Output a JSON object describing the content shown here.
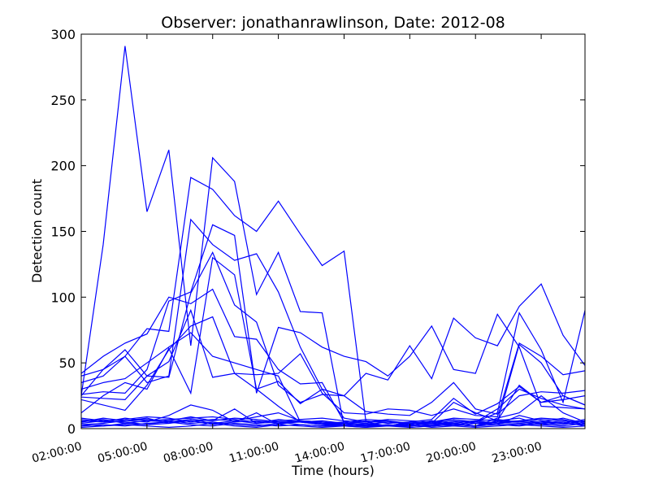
{
  "chart_data": {
    "type": "line",
    "title": "Observer: jonathanrawlinson, Date: 2012-08",
    "xlabel": "Time (hours)",
    "ylabel": "Detection count",
    "ylim": [
      0,
      300
    ],
    "yticks": [
      0,
      50,
      100,
      150,
      200,
      250,
      300
    ],
    "xlim_hours": [
      2,
      25
    ],
    "xtick_labels": [
      "02:00:00",
      "05:00:00",
      "08:00:00",
      "11:00:00",
      "14:00:00",
      "17:00:00",
      "20:00:00",
      "23:00:00"
    ],
    "xtick_hours": [
      2,
      5,
      8,
      11,
      14,
      17,
      20,
      23
    ],
    "x_hours": [
      2,
      3,
      4,
      5,
      6,
      7,
      8,
      9,
      10,
      11,
      12,
      13,
      14,
      15,
      16,
      17,
      18,
      19,
      20,
      21,
      22,
      23,
      24,
      25
    ],
    "line_color": "#0000ff",
    "grid": false,
    "legend": "none",
    "series": [
      {
        "values": [
          25,
          140,
          291,
          165,
          212,
          63,
          206,
          188,
          102,
          134,
          89,
          88,
          2,
          3,
          2,
          1,
          2,
          3,
          5,
          12,
          88,
          60,
          20,
          90
        ]
      },
      {
        "values": [
          40,
          45,
          55,
          76,
          74,
          191,
          182,
          162,
          150,
          173,
          148,
          124,
          135,
          5,
          2,
          4,
          3,
          4,
          2,
          8,
          12,
          25,
          12,
          5
        ]
      },
      {
        "values": [
          35,
          40,
          55,
          35,
          40,
          159,
          140,
          128,
          133,
          104,
          62,
          30,
          25,
          42,
          37,
          63,
          38,
          84,
          69,
          63,
          93,
          110,
          71,
          48
        ]
      },
      {
        "values": [
          26,
          28,
          27,
          45,
          97,
          104,
          155,
          147,
          27,
          77,
          73,
          62,
          55,
          51,
          40,
          55,
          78,
          45,
          42,
          87,
          62,
          17,
          16,
          15
        ]
      },
      {
        "values": [
          22,
          18,
          14,
          33,
          60,
          78,
          85,
          42,
          41,
          42,
          57,
          27,
          12,
          11,
          15,
          14,
          10,
          15,
          10,
          9,
          65,
          55,
          41,
          44
        ]
      },
      {
        "values": [
          24,
          23,
          22,
          40,
          39,
          103,
          134,
          94,
          81,
          33,
          20,
          26,
          25,
          13,
          11,
          10,
          20,
          35,
          15,
          11,
          25,
          28,
          27,
          29
        ]
      },
      {
        "values": [
          12,
          25,
          35,
          30,
          61,
          27,
          130,
          117,
          30,
          36,
          19,
          30,
          8,
          5,
          5,
          4,
          4,
          20,
          12,
          6,
          33,
          20,
          22,
          25
        ]
      },
      {
        "values": [
          42,
          55,
          65,
          72,
          100,
          95,
          106,
          70,
          68,
          45,
          34,
          35,
          5,
          2,
          2,
          3,
          2,
          3,
          2,
          5,
          64,
          50,
          25,
          18
        ]
      },
      {
        "values": [
          25,
          45,
          60,
          40,
          51,
          90,
          39,
          42,
          30,
          17,
          5,
          3,
          2,
          2,
          3,
          1,
          2,
          3,
          5,
          15,
          30,
          23,
          18,
          15
        ]
      },
      {
        "values": [
          30,
          35,
          38,
          50,
          62,
          73,
          55,
          50,
          45,
          40,
          5,
          4,
          3,
          2,
          2,
          5,
          7,
          23,
          11,
          19,
          32,
          20,
          25,
          18
        ]
      },
      {
        "values": [
          5,
          8,
          6,
          5,
          10,
          18,
          14,
          5,
          12,
          3,
          6,
          4,
          2,
          1,
          3,
          2,
          5,
          3,
          2,
          6,
          8,
          3,
          5,
          2
        ]
      },
      {
        "values": [
          3,
          4,
          6,
          7,
          6,
          9,
          6,
          15,
          4,
          5,
          3,
          2,
          3,
          4,
          2,
          3,
          6,
          4,
          2,
          3,
          10,
          6,
          4,
          3
        ]
      },
      {
        "values": [
          8,
          6,
          7,
          9,
          8,
          5,
          7,
          6,
          9,
          12,
          6,
          5,
          4,
          6,
          4,
          5,
          4,
          6,
          4,
          5,
          6,
          8,
          7,
          3
        ]
      },
      {
        "values": [
          2,
          3,
          2,
          4,
          5,
          3,
          2,
          4,
          3,
          2,
          3,
          2,
          2,
          3,
          2,
          2,
          3,
          2,
          4,
          3,
          2,
          4,
          3,
          6
        ]
      },
      {
        "values": [
          6,
          5,
          8,
          6,
          7,
          8,
          9,
          7,
          5,
          6,
          7,
          8,
          6,
          5,
          7,
          6,
          5,
          8,
          7,
          6,
          5,
          7,
          6,
          5
        ]
      },
      {
        "values": [
          4,
          6,
          5,
          3,
          4,
          6,
          3,
          5,
          6,
          4,
          5,
          3,
          4,
          3,
          5,
          4,
          3,
          5,
          6,
          4,
          3,
          5,
          4,
          7
        ]
      },
      {
        "values": [
          1,
          2,
          3,
          2,
          1,
          2,
          4,
          2,
          1,
          3,
          2,
          1,
          2,
          1,
          2,
          3,
          1,
          2,
          1,
          2,
          3,
          2,
          1,
          2
        ]
      },
      {
        "values": [
          7,
          5,
          6,
          8,
          4,
          7,
          6,
          8,
          7,
          5,
          6,
          4,
          5,
          7,
          6,
          4,
          5,
          7,
          5,
          4,
          6,
          5,
          8,
          4
        ]
      },
      {
        "values": [
          3,
          2,
          4,
          3,
          6,
          4,
          5,
          3,
          2,
          4,
          6,
          5,
          3,
          4,
          2,
          5,
          4,
          3,
          2,
          5,
          4,
          3,
          2,
          4
        ]
      },
      {
        "values": [
          5,
          7,
          4,
          6,
          5,
          7,
          4,
          6,
          4,
          7,
          5,
          6,
          4,
          5,
          6,
          3,
          6,
          4,
          6,
          7,
          5,
          4,
          6,
          3
        ]
      }
    ]
  }
}
